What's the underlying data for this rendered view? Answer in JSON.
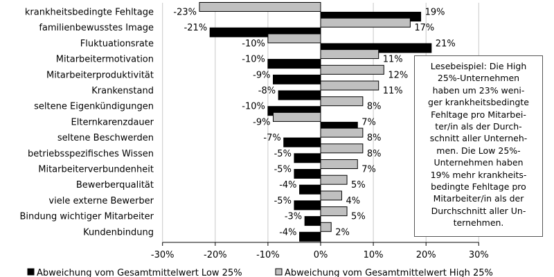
{
  "chart_data": {
    "type": "bar",
    "orientation": "horizontal",
    "categories": [
      "krankheitsbedingte Fehltage",
      "familienbewusstes Image",
      "Fluktuationsrate",
      "Mitarbeitermotivation",
      "Mitarbeiterproduktivität",
      "Krankenstand",
      "seltene Eigenkündigungen",
      "Elternkarenzdauer",
      "seltene Beschwerden",
      "betriebsspezifisches Wissen",
      "Mitarbeiterverbundenheit",
      "Bewerberqualität",
      "viele externe Bewerber",
      "Bindung wichtiger Mitarbeiter",
      "Kundenbindung"
    ],
    "series": [
      {
        "name": "Abweichung vom Gesamtmittelwert Low 25%",
        "color": "#000000",
        "values": [
          19,
          -21,
          21,
          -10,
          -9,
          -8,
          -10,
          7,
          -7,
          -5,
          -5,
          -4,
          -5,
          -3,
          -4
        ],
        "labels": [
          "19%",
          "-21%",
          "21%",
          "-10%",
          "-9%",
          "-8%",
          "-10%",
          "7%",
          "-7%",
          "-5%",
          "-5%",
          "-4%",
          "-5%",
          "-3%",
          "-4%"
        ]
      },
      {
        "name": "Abweichung vom Gesamtmittelwert High 25%",
        "color": "#c0c0c0",
        "values": [
          -23,
          17,
          -10,
          11,
          12,
          11,
          8,
          -9,
          8,
          8,
          7,
          5,
          4,
          5,
          2
        ],
        "labels": [
          "-23%",
          "17%",
          "-10%",
          "11%",
          "12%",
          "11%",
          "8%",
          "-9%",
          "8%",
          "8%",
          "7%",
          "5%",
          "4%",
          "5%",
          "2%"
        ]
      }
    ],
    "xlim": [
      -30,
      30
    ],
    "xticks": [
      -30,
      -20,
      -10,
      0,
      10,
      20,
      30
    ],
    "xtick_labels": [
      "-30%",
      "-20%",
      "-10%",
      "0%",
      "10%",
      "20%",
      "30%"
    ],
    "grid": "vertical",
    "legend_position": "bottom",
    "annotation": "Lesebeispiel: Die High 25%-Unternehmen haben um 23% weni-ger krankheitsbedingte Fehltage pro Mitarbei-ter/in als der Durch-schnitt aller Unterneh-men. Die Low 25%-Unternehmen haben 19% mehr krankheits-bedingte Fehltage pro Mitarbeiter/in als der Durchschnitt aller Un-ternehmen.",
    "annotation_lines": [
      "Lesebeispiel: Die High",
      "25%-Unternehmen",
      "haben um 23% weni-",
      "ger krankheitsbedingte",
      "Fehltage pro Mitarbei-",
      "ter/in als der Durch-",
      "schnitt aller Unterneh-",
      "men. Die Low 25%-",
      "Unternehmen haben",
      "19% mehr krankheits-",
      "bedingte Fehltage pro",
      "Mitarbeiter/in als der",
      "Durchschnitt aller Un-",
      "ternehmen."
    ]
  }
}
